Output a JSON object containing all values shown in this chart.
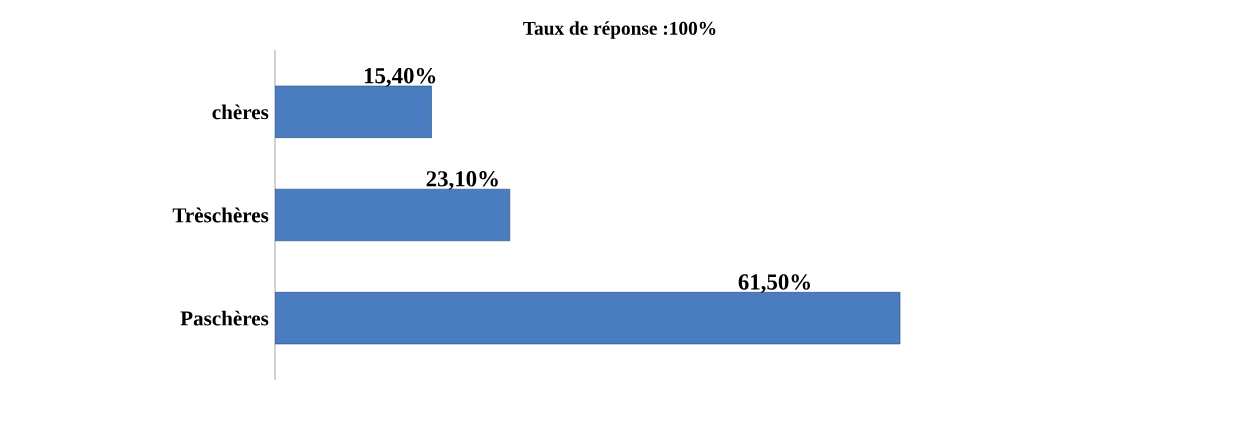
{
  "chart_data": {
    "type": "bar",
    "orientation": "horizontal",
    "title": "Taux de réponse :100%",
    "categories": [
      "chères",
      "Trèschères",
      "Paschères"
    ],
    "values": [
      15.4,
      23.1,
      61.5
    ],
    "color": "#4a7cc0",
    "value_labels": [
      "15,40%",
      "23,10%",
      "61,50%"
    ]
  }
}
